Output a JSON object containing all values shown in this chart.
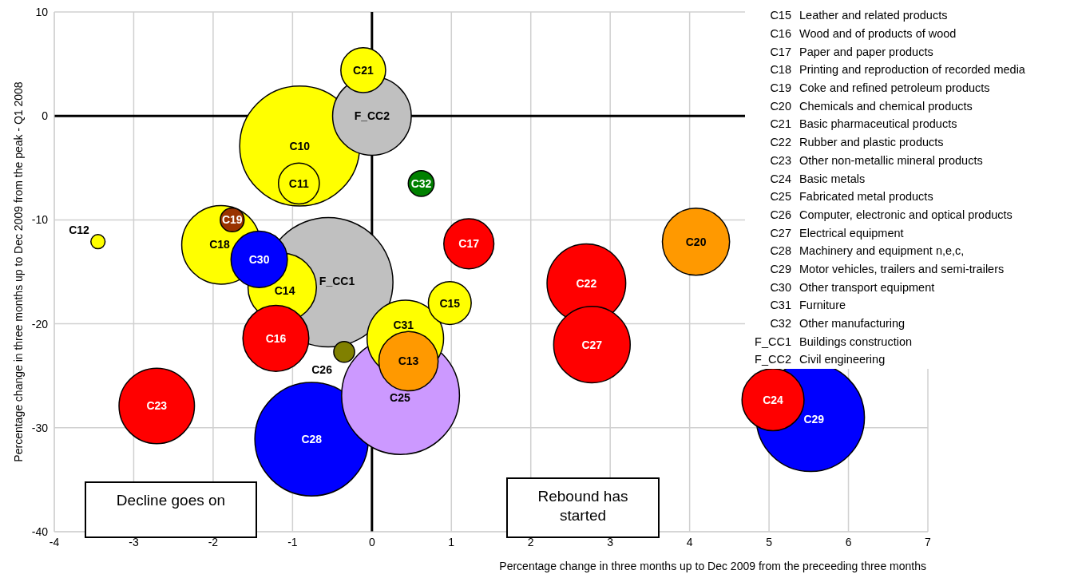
{
  "chart_data": {
    "type": "bubble",
    "xlabel": "Percentage change in three months up to Dec 2009 from the preceeding three months",
    "ylabel": "Percentage change in three months up to Dec 2009 from the peak - Q1 2008",
    "xlim": [
      -4,
      7
    ],
    "xticks": [
      -4,
      -3,
      -2,
      -1,
      0,
      1,
      2,
      3,
      4,
      5,
      6,
      7
    ],
    "ylim": [
      -40,
      10
    ],
    "yticks": [
      -40,
      -30,
      -20,
      -10,
      0,
      10
    ],
    "grid": true,
    "legend": false,
    "series": [
      {
        "name": "F_CC1",
        "color": "#c0c0c0",
        "x": [
          -0.55
        ],
        "values": [
          -16.0
        ],
        "sizes": [
          1
        ]
      },
      {
        "name": "C10",
        "color": "#ffff00",
        "x": [
          -0.91
        ],
        "values": [
          -2.9
        ],
        "sizes": [
          0.86
        ]
      },
      {
        "name": "C28",
        "color": "#0000ff",
        "x": [
          -0.76
        ],
        "values": [
          -31.1
        ],
        "sizes": [
          0.77
        ]
      },
      {
        "name": "C25",
        "color": "#cc99ff",
        "x": [
          0.36
        ],
        "values": [
          -26.9
        ],
        "sizes": [
          0.83
        ]
      },
      {
        "name": "C29",
        "color": "#0000ff",
        "x": [
          5.52
        ],
        "values": [
          -29.0
        ],
        "sizes": [
          0.7
        ]
      },
      {
        "name": "F_CC2",
        "color": "#c0c0c0",
        "x": [
          0.0
        ],
        "values": [
          0.0
        ],
        "sizes": [
          0.37
        ]
      },
      {
        "name": "C18",
        "color": "#ffff00",
        "x": [
          -1.9
        ],
        "values": [
          -12.4
        ],
        "sizes": [
          0.37
        ]
      },
      {
        "name": "C31",
        "color": "#ffff00",
        "x": [
          0.42
        ],
        "values": [
          -21.4
        ],
        "sizes": [
          0.35
        ]
      },
      {
        "name": "C22",
        "color": "#ff0000",
        "x": [
          2.7
        ],
        "values": [
          -16.1
        ],
        "sizes": [
          0.37
        ]
      },
      {
        "name": "C27",
        "color": "#ff0000",
        "x": [
          2.77
        ],
        "values": [
          -22.0
        ],
        "sizes": [
          0.35
        ]
      },
      {
        "name": "C23",
        "color": "#ff0000",
        "x": [
          -2.71
        ],
        "values": [
          -27.9
        ],
        "sizes": [
          0.34
        ]
      },
      {
        "name": "C14",
        "color": "#ffff00",
        "x": [
          -1.13
        ],
        "values": [
          -16.5
        ],
        "sizes": [
          0.28
        ]
      },
      {
        "name": "C20",
        "color": "#ff9900",
        "x": [
          4.08
        ],
        "values": [
          -12.1
        ],
        "sizes": [
          0.27
        ]
      },
      {
        "name": "C16",
        "color": "#ff0000",
        "x": [
          -1.21
        ],
        "values": [
          -21.4
        ],
        "sizes": [
          0.26
        ]
      },
      {
        "name": "C24",
        "color": "#ff0000",
        "x": [
          5.05
        ],
        "values": [
          -27.3
        ],
        "sizes": [
          0.23
        ]
      },
      {
        "name": "C13",
        "color": "#ff9900",
        "x": [
          0.46
        ],
        "values": [
          -23.6
        ],
        "sizes": [
          0.21
        ]
      },
      {
        "name": "C30",
        "color": "#0000ff",
        "x": [
          -1.42
        ],
        "values": [
          -13.8
        ],
        "sizes": [
          0.19
        ]
      },
      {
        "name": "C17",
        "color": "#ff0000",
        "x": [
          1.22
        ],
        "values": [
          -12.3
        ],
        "sizes": [
          0.15
        ]
      },
      {
        "name": "C21",
        "color": "#ffff00",
        "x": [
          -0.11
        ],
        "values": [
          4.4
        ],
        "sizes": [
          0.12
        ]
      },
      {
        "name": "C11",
        "color": "#ffff00",
        "x": [
          -0.92
        ],
        "values": [
          -6.5
        ],
        "sizes": [
          0.1
        ]
      },
      {
        "name": "C15",
        "color": "#ffff00",
        "x": [
          0.98
        ],
        "values": [
          -18.0
        ],
        "sizes": [
          0.11
        ]
      },
      {
        "name": "C32",
        "color": "#008000",
        "x": [
          0.62
        ],
        "values": [
          -6.5
        ],
        "sizes": [
          0.04
        ]
      },
      {
        "name": "C19",
        "color": "#993300",
        "x": [
          -1.76
        ],
        "values": [
          -10.0
        ],
        "sizes": [
          0.034
        ]
      },
      {
        "name": "C26",
        "color": "#808000",
        "x": [
          -0.35
        ],
        "values": [
          -22.7
        ],
        "sizes": [
          0.026
        ]
      },
      {
        "name": "C12",
        "color": "#ffff00",
        "x": [
          -3.45
        ],
        "values": [
          -12.1
        ],
        "sizes": [
          0.012
        ]
      }
    ],
    "annotations": [
      "Decline goes on",
      "Rebound has started",
      "C15 Leather and related products",
      "C16 Wood and of products of wood",
      "C17 Paper and paper products",
      "C18 Printing and reproduction of recorded media",
      "C19 Coke and refined petroleum products",
      "C20 Chemicals and chemical products",
      "C21 Basic pharmaceutical products",
      "C22 Rubber and plastic products",
      "C23 Other non-metallic mineral products",
      "C24 Basic metals",
      "C25 Fabricated metal products",
      "C26 Computer, electronic and optical products",
      "C27 Electrical equipment",
      "C28 Machinery and equipment n,e,c,",
      "C29 Motor vehicles, trailers and semi-trailers",
      "C30 Other transport equipment",
      "C31 Furniture",
      "C32 Other manufacturing",
      "F_CC1 Buildings construction",
      "F_CC2 Civil engineering"
    ]
  }
}
